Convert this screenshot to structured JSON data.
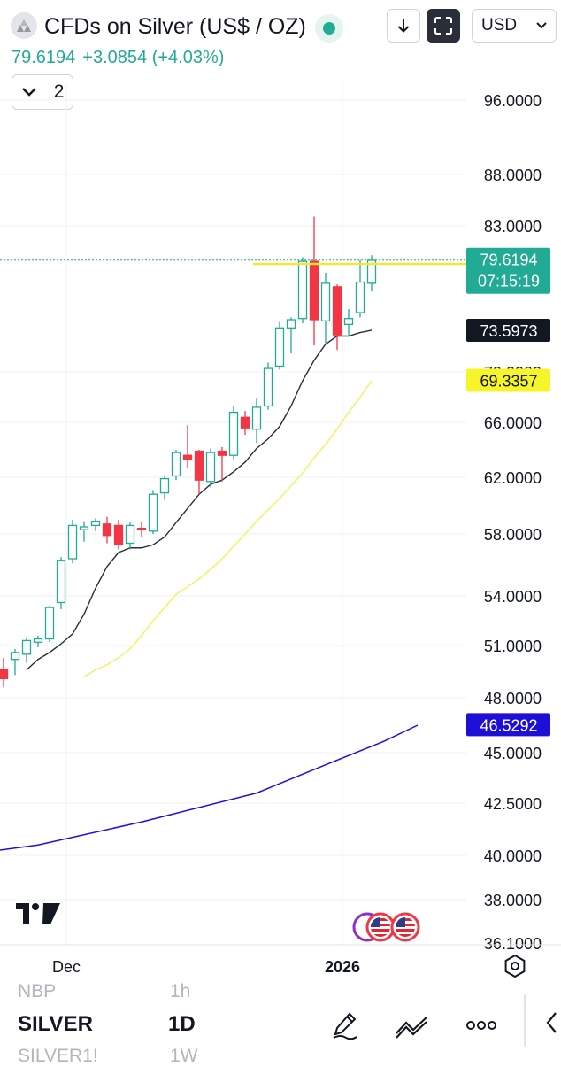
{
  "header": {
    "symbol_logo_icon": "silver-bars-icon",
    "title": "CFDs on Silver (US$ / OZ)",
    "last_price": "79.6194",
    "change": "+3.0854 (+4.03%)",
    "download_icon": "arrow-down-icon",
    "fullscreen_icon": "fullscreen-icon",
    "currency": "USD",
    "collapse_count": "2",
    "colors": {
      "up": "#22ab94",
      "down": "#f23645",
      "live": "#22ab94"
    }
  },
  "price_axis": {
    "ticks": [
      "96.0000",
      "88.0000",
      "83.0000",
      "70.0000",
      "66.0000",
      "62.0000",
      "58.0000",
      "54.0000",
      "51.0000",
      "48.0000",
      "45.0000",
      "42.5000",
      "40.0000",
      "38.0000",
      "36.1000"
    ]
  },
  "time_axis": {
    "labels": [
      "Dec",
      "2026"
    ],
    "settings_icon": "gear-hexagon-icon"
  },
  "badges": {
    "last": {
      "price": "79.6194",
      "countdown": "07:15:19",
      "color": "#22ab94"
    },
    "line": {
      "price": "79.2473",
      "color": "#f5e733"
    },
    "ema_fast": {
      "price": "73.5973",
      "color": "#131722"
    },
    "ema_slow": {
      "price": "69.3357",
      "color": "#f5f52a"
    },
    "ma_long": {
      "price": "46.5292",
      "color": "#1e0fd6"
    }
  },
  "chart_data": {
    "type": "candlestick",
    "candles": [
      {
        "o": 49.6,
        "h": 50.3,
        "l": 48.6,
        "c": 49.1
      },
      {
        "o": 50.2,
        "h": 50.8,
        "l": 49.3,
        "c": 50.6
      },
      {
        "o": 50.5,
        "h": 51.5,
        "l": 50.0,
        "c": 51.3
      },
      {
        "o": 51.2,
        "h": 51.6,
        "l": 50.9,
        "c": 51.4
      },
      {
        "o": 51.4,
        "h": 53.4,
        "l": 51.2,
        "c": 53.3
      },
      {
        "o": 53.6,
        "h": 56.5,
        "l": 53.2,
        "c": 56.3
      },
      {
        "o": 56.4,
        "h": 59.0,
        "l": 56.1,
        "c": 58.6
      },
      {
        "o": 58.3,
        "h": 58.9,
        "l": 57.5,
        "c": 58.5
      },
      {
        "o": 58.6,
        "h": 59.1,
        "l": 58.2,
        "c": 58.9
      },
      {
        "o": 58.7,
        "h": 59.2,
        "l": 57.4,
        "c": 57.9
      },
      {
        "o": 58.6,
        "h": 59.0,
        "l": 57.0,
        "c": 57.3
      },
      {
        "o": 57.4,
        "h": 58.8,
        "l": 57.0,
        "c": 58.6
      },
      {
        "o": 58.4,
        "h": 58.9,
        "l": 57.8,
        "c": 58.3
      },
      {
        "o": 58.2,
        "h": 61.1,
        "l": 58.0,
        "c": 60.8
      },
      {
        "o": 60.9,
        "h": 62.1,
        "l": 60.4,
        "c": 61.9
      },
      {
        "o": 62.1,
        "h": 64.0,
        "l": 61.8,
        "c": 63.8
      },
      {
        "o": 63.6,
        "h": 65.8,
        "l": 62.7,
        "c": 63.3
      },
      {
        "o": 63.9,
        "h": 64.0,
        "l": 60.8,
        "c": 61.8
      },
      {
        "o": 61.7,
        "h": 64.1,
        "l": 61.3,
        "c": 63.8
      },
      {
        "o": 63.9,
        "h": 64.2,
        "l": 61.7,
        "c": 63.6
      },
      {
        "o": 63.6,
        "h": 67.3,
        "l": 63.3,
        "c": 66.8
      },
      {
        "o": 66.4,
        "h": 66.9,
        "l": 65.1,
        "c": 65.6
      },
      {
        "o": 65.5,
        "h": 67.9,
        "l": 64.5,
        "c": 67.2
      },
      {
        "o": 67.3,
        "h": 70.8,
        "l": 67.0,
        "c": 70.3
      },
      {
        "o": 70.5,
        "h": 74.3,
        "l": 70.2,
        "c": 73.8
      },
      {
        "o": 73.8,
        "h": 74.7,
        "l": 71.6,
        "c": 74.5
      },
      {
        "o": 74.6,
        "h": 79.9,
        "l": 74.2,
        "c": 79.5
      },
      {
        "o": 79.5,
        "h": 83.9,
        "l": 72.3,
        "c": 74.5
      },
      {
        "o": 74.4,
        "h": 78.5,
        "l": 72.4,
        "c": 77.6
      },
      {
        "o": 77.3,
        "h": 77.5,
        "l": 71.9,
        "c": 73.2
      },
      {
        "o": 74.1,
        "h": 75.4,
        "l": 73.1,
        "c": 74.6
      },
      {
        "o": 75.1,
        "h": 79.6,
        "l": 74.7,
        "c": 77.7
      },
      {
        "o": 77.6,
        "h": 80.1,
        "l": 76.9,
        "c": 79.6
      }
    ],
    "ema_fast": [
      49.6,
      50.2,
      50.6,
      51.1,
      51.7,
      52.9,
      54.5,
      55.9,
      56.8,
      57.1,
      57.1,
      57.3,
      57.8,
      58.8,
      59.8,
      60.8,
      61.5,
      61.8,
      62.4,
      63.1,
      64.1,
      64.8,
      65.7,
      67.3,
      69.3,
      71.0,
      72.4,
      73.1,
      73.1,
      73.4,
      73.6
    ],
    "ema_slow": [
      49.2,
      49.6,
      49.9,
      50.3,
      50.8,
      51.6,
      52.5,
      53.3,
      54.1,
      54.6,
      55.1,
      55.7,
      56.4,
      57.2,
      58.0,
      58.9,
      59.7,
      60.5,
      61.4,
      62.3,
      63.4,
      64.4,
      65.5,
      66.8,
      68.0,
      69.3
    ],
    "ma_long_points": [
      [
        -1,
        40.2
      ],
      [
        3,
        40.5
      ],
      [
        12,
        41.6
      ],
      [
        22,
        43.0
      ],
      [
        28,
        44.4
      ],
      [
        33,
        45.6
      ],
      [
        36,
        46.5
      ]
    ],
    "horizontal_line": 79.2473,
    "last_price_line": 79.6194
  },
  "bottom": {
    "ghost_top": [
      "NBP",
      "1h"
    ],
    "symbol": "SILVER",
    "interval": "1D",
    "ghost_bottom": [
      "SILVER1!",
      "1W"
    ],
    "tools": [
      "pencil-draw-icon",
      "trend-lines-icon",
      "more-dots-icon"
    ]
  }
}
